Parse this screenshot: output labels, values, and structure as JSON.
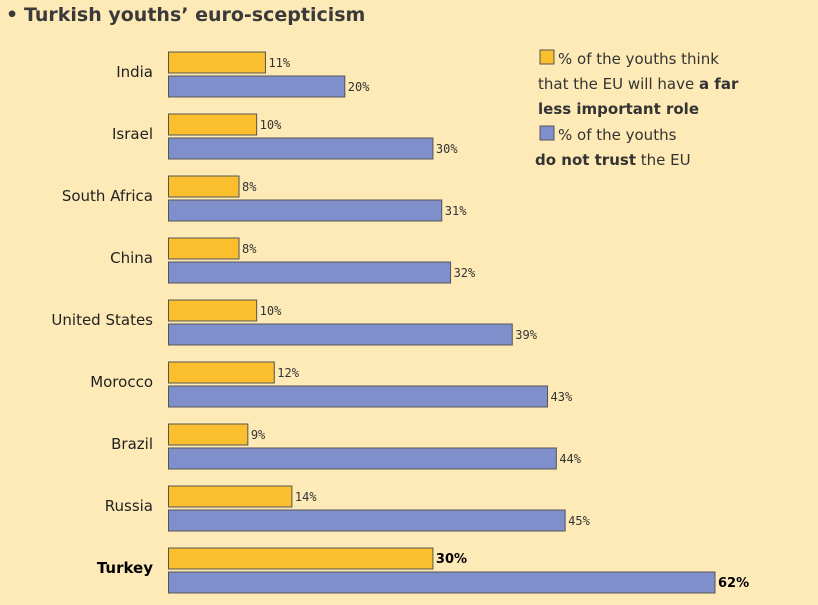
{
  "chart_data": {
    "type": "bar",
    "orientation": "horizontal",
    "title": "Turkish youths’ euro-scepticism",
    "title_bullet": "•",
    "categories": [
      "India",
      "Israel",
      "South Africa",
      "China",
      "United States",
      "Morocco",
      "Brazil",
      "Russia",
      "Turkey"
    ],
    "highlight_category": "Turkey",
    "value_suffix": "%",
    "xlim": [
      0,
      62
    ],
    "series": [
      {
        "name": "far less important role",
        "color": "#fbbf2e",
        "values": [
          11,
          10,
          8,
          8,
          10,
          12,
          9,
          14,
          30
        ],
        "legend_lines": [
          [
            {
              "text": "% of the youths think",
              "bold": false
            }
          ],
          [
            {
              "text": "that the EU will have ",
              "bold": false
            },
            {
              "text": "a far",
              "bold": true
            }
          ],
          [
            {
              "text": "less important role",
              "bold": true
            }
          ]
        ]
      },
      {
        "name": "do not trust the EU",
        "color": "#7f8fcb",
        "values": [
          20,
          30,
          31,
          32,
          39,
          43,
          44,
          45,
          62
        ],
        "legend_lines": [
          [
            {
              "text": "% of the youths",
              "bold": false
            }
          ],
          [
            {
              "text": "do not trust",
              "bold": true
            },
            {
              "text": " the EU",
              "bold": false
            }
          ]
        ]
      }
    ],
    "legend_position": "top-right",
    "grid": false
  }
}
